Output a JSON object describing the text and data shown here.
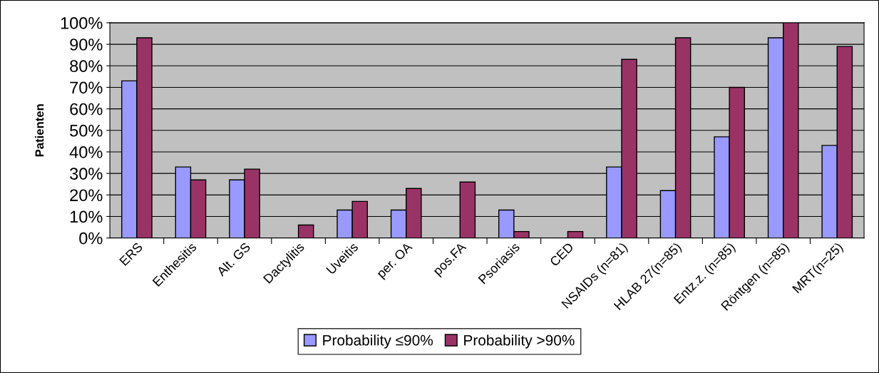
{
  "chart_data": {
    "type": "bar",
    "ylabel": "Patienten",
    "categories": [
      "ERS",
      "Enthesitis",
      "Alt. GS",
      "Dactylitis",
      "Uveitis",
      "per. OA",
      "pos.FA",
      "Psoriasis",
      "CED",
      "NSAIDs (n=81)",
      "HLAB 27(n=85)",
      "Entz.z. (n=85)",
      "Röntgen (n=85)",
      "MRT(n=25)"
    ],
    "series": [
      {
        "name": "Probability ≤90%",
        "color": "#9999ff",
        "values": [
          73,
          33,
          27,
          null,
          13,
          13,
          null,
          13,
          null,
          33,
          22,
          47,
          93,
          43
        ]
      },
      {
        "name": "Probability >90%",
        "color": "#993366",
        "values": [
          93,
          27,
          32,
          6,
          17,
          23,
          26,
          3,
          3,
          83,
          93,
          70,
          100,
          89
        ]
      }
    ],
    "ylim": [
      0,
      100
    ],
    "yticks": [
      {
        "value": 0,
        "label": "0%"
      },
      {
        "value": 10,
        "label": "10%"
      },
      {
        "value": 20,
        "label": "20%"
      },
      {
        "value": 30,
        "label": "30%"
      },
      {
        "value": 40,
        "label": "40%"
      },
      {
        "value": 50,
        "label": "50%"
      },
      {
        "value": 60,
        "label": "60%"
      },
      {
        "value": 70,
        "label": "70%"
      },
      {
        "value": 80,
        "label": "80%"
      },
      {
        "value": 90,
        "label": "90%"
      },
      {
        "value": 100,
        "label": "100%"
      }
    ],
    "grid": "y",
    "legend": "bottom"
  }
}
